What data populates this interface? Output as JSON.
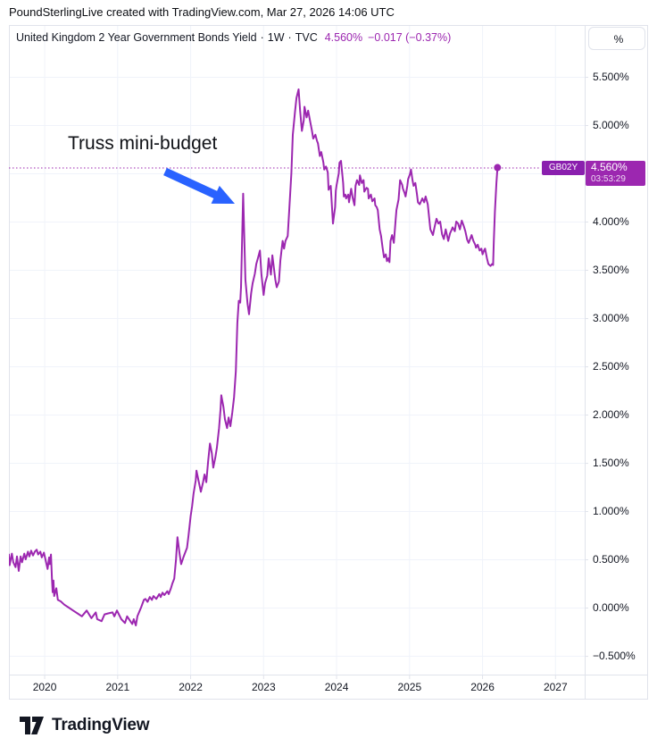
{
  "header": {
    "attribution": "PoundSterlingLive created with TradingView.com, Mar 27, 2026 14:06 UTC"
  },
  "legend": {
    "title": "United Kingdom 2 Year Government Bonds Yield",
    "separator": "·",
    "interval": "1W",
    "exchange": "TVC",
    "value": "4.560%",
    "change": "−0.017 (−0.37%)"
  },
  "annotation": {
    "label": "Truss mini-budget"
  },
  "price_scale": {
    "unit_button": "%",
    "label_symbol": "GB02Y",
    "label_value": "4.560%",
    "label_countdown": "03:53:29"
  },
  "footer": {
    "brand": "TradingView"
  },
  "colors": {
    "line": "#9c27b0",
    "badge_symbol_bg": "#8a1fae",
    "badge_value_bg": "#9c27b0",
    "arrow": "#2962ff",
    "grid": "#f0f3fa",
    "frame": "#e0e3eb",
    "text": "#131722"
  },
  "chart_data": {
    "type": "line",
    "title": "United Kingdom 2 Year Government Bonds Yield",
    "interval": "1W",
    "symbol": "GB02Y",
    "grid": true,
    "x_axis": {
      "range": [
        2019.51,
        2027.4
      ],
      "ticks": [
        2020,
        2021,
        2022,
        2023,
        2024,
        2025,
        2026,
        2027
      ],
      "tick_labels": [
        "2020",
        "2021",
        "2022",
        "2023",
        "2024",
        "2025",
        "2026",
        "2027"
      ]
    },
    "y_axis": {
      "unit": "%",
      "range": [
        -0.694,
        6.037
      ],
      "gridline_values": [
        5.5,
        5.0,
        4.5,
        4.0,
        3.5,
        3.0,
        2.5,
        2.0,
        1.5,
        1.0,
        0.5,
        0.0,
        -0.5
      ],
      "labels": [
        {
          "value": 5.5,
          "label": "5.500%"
        },
        {
          "value": 5.0,
          "label": "5.000%"
        },
        {
          "value": 4.0,
          "label": "4.000%"
        },
        {
          "value": 3.5,
          "label": "3.500%"
        },
        {
          "value": 3.0,
          "label": "3.000%"
        },
        {
          "value": 2.5,
          "label": "2.500%"
        },
        {
          "value": 2.0,
          "label": "2.000%"
        },
        {
          "value": 1.5,
          "label": "1.500%"
        },
        {
          "value": 1.0,
          "label": "1.000%"
        },
        {
          "value": 0.5,
          "label": "0.500%"
        },
        {
          "value": 0.0,
          "label": "0.000%"
        },
        {
          "value": -0.5,
          "label": "−0.500%"
        }
      ]
    },
    "last_point": {
      "x": 2026.205,
      "value": 4.56
    },
    "annotations": [
      {
        "text": "Truss mini-budget",
        "points_to_x": 2022.72,
        "points_to_value": 4.29
      }
    ],
    "series": [
      {
        "name": "GB02Y",
        "color": "#9c27b0",
        "points": [
          [
            2019.51,
            0.55
          ],
          [
            2019.52,
            0.44
          ],
          [
            2019.55,
            0.56
          ],
          [
            2019.57,
            0.47
          ],
          [
            2019.6,
            0.42
          ],
          [
            2019.62,
            0.53
          ],
          [
            2019.645,
            0.38
          ],
          [
            2019.67,
            0.53
          ],
          [
            2019.69,
            0.47
          ],
          [
            2019.72,
            0.56
          ],
          [
            2019.74,
            0.5
          ],
          [
            2019.77,
            0.58
          ],
          [
            2019.79,
            0.53
          ],
          [
            2019.815,
            0.59
          ],
          [
            2019.84,
            0.54
          ],
          [
            2019.865,
            0.58
          ],
          [
            2019.89,
            0.6
          ],
          [
            2019.91,
            0.55
          ],
          [
            2019.94,
            0.58
          ],
          [
            2019.96,
            0.52
          ],
          [
            2019.99,
            0.57
          ],
          [
            2020.01,
            0.5
          ],
          [
            2020.04,
            0.4
          ],
          [
            2020.06,
            0.52
          ],
          [
            2020.07,
            0.45
          ],
          [
            2020.086,
            0.55
          ],
          [
            2020.1,
            0.3
          ],
          [
            2020.11,
            0.16
          ],
          [
            2020.12,
            0.28
          ],
          [
            2020.13,
            0.12
          ],
          [
            2020.16,
            0.2
          ],
          [
            2020.18,
            0.08
          ],
          [
            2020.22,
            0.065
          ],
          [
            2020.27,
            0.03
          ],
          [
            2020.33,
            0.0
          ],
          [
            2020.39,
            -0.03
          ],
          [
            2020.45,
            -0.06
          ],
          [
            2020.51,
            -0.09
          ],
          [
            2020.575,
            -0.03
          ],
          [
            2020.64,
            -0.11
          ],
          [
            2020.7,
            -0.05
          ],
          [
            2020.72,
            -0.12
          ],
          [
            2020.78,
            -0.14
          ],
          [
            2020.82,
            -0.07
          ],
          [
            2020.87,
            -0.06
          ],
          [
            2020.93,
            -0.05
          ],
          [
            2020.955,
            -0.09
          ],
          [
            2020.99,
            -0.03
          ],
          [
            2021.05,
            -0.12
          ],
          [
            2021.1,
            -0.16
          ],
          [
            2021.13,
            -0.09
          ],
          [
            2021.2,
            -0.17
          ],
          [
            2021.22,
            -0.12
          ],
          [
            2021.25,
            -0.185
          ],
          [
            2021.27,
            -0.09
          ],
          [
            2021.32,
            0.0
          ],
          [
            2021.36,
            0.08
          ],
          [
            2021.38,
            0.09
          ],
          [
            2021.41,
            0.06
          ],
          [
            2021.44,
            0.11
          ],
          [
            2021.47,
            0.08
          ],
          [
            2021.49,
            0.12
          ],
          [
            2021.53,
            0.09
          ],
          [
            2021.57,
            0.14
          ],
          [
            2021.59,
            0.11
          ],
          [
            2021.615,
            0.155
          ],
          [
            2021.64,
            0.13
          ],
          [
            2021.68,
            0.17
          ],
          [
            2021.7,
            0.14
          ],
          [
            2021.73,
            0.2
          ],
          [
            2021.75,
            0.25
          ],
          [
            2021.775,
            0.3
          ],
          [
            2021.8,
            0.5
          ],
          [
            2021.82,
            0.73
          ],
          [
            2021.85,
            0.55
          ],
          [
            2021.87,
            0.45
          ],
          [
            2021.9,
            0.52
          ],
          [
            2021.92,
            0.56
          ],
          [
            2021.95,
            0.62
          ],
          [
            2021.97,
            0.74
          ],
          [
            2022.0,
            0.95
          ],
          [
            2022.02,
            1.05
          ],
          [
            2022.04,
            1.18
          ],
          [
            2022.07,
            1.32
          ],
          [
            2022.08,
            1.42
          ],
          [
            2022.105,
            1.33
          ],
          [
            2022.14,
            1.2
          ],
          [
            2022.17,
            1.3
          ],
          [
            2022.19,
            1.38
          ],
          [
            2022.215,
            1.3
          ],
          [
            2022.24,
            1.52
          ],
          [
            2022.265,
            1.7
          ],
          [
            2022.29,
            1.6
          ],
          [
            2022.31,
            1.45
          ],
          [
            2022.34,
            1.56
          ],
          [
            2022.36,
            1.66
          ],
          [
            2022.39,
            1.86
          ],
          [
            2022.41,
            2.06
          ],
          [
            2022.42,
            2.2
          ],
          [
            2022.45,
            2.08
          ],
          [
            2022.47,
            1.95
          ],
          [
            2022.5,
            1.86
          ],
          [
            2022.52,
            1.97
          ],
          [
            2022.545,
            1.88
          ],
          [
            2022.57,
            2.02
          ],
          [
            2022.595,
            2.18
          ],
          [
            2022.62,
            2.45
          ],
          [
            2022.64,
            2.95
          ],
          [
            2022.66,
            3.18
          ],
          [
            2022.68,
            3.16
          ],
          [
            2022.69,
            3.32
          ],
          [
            2022.72,
            4.29
          ],
          [
            2022.73,
            4.0
          ],
          [
            2022.75,
            3.4
          ],
          [
            2022.78,
            3.15
          ],
          [
            2022.8,
            3.04
          ],
          [
            2022.83,
            3.26
          ],
          [
            2022.85,
            3.36
          ],
          [
            2022.88,
            3.46
          ],
          [
            2022.9,
            3.56
          ],
          [
            2022.925,
            3.63
          ],
          [
            2022.95,
            3.7
          ],
          [
            2022.97,
            3.45
          ],
          [
            2023.0,
            3.24
          ],
          [
            2023.02,
            3.36
          ],
          [
            2023.05,
            3.44
          ],
          [
            2023.07,
            3.62
          ],
          [
            2023.1,
            3.45
          ],
          [
            2023.12,
            3.65
          ],
          [
            2023.16,
            3.4
          ],
          [
            2023.18,
            3.32
          ],
          [
            2023.21,
            3.38
          ],
          [
            2023.23,
            3.6
          ],
          [
            2023.26,
            3.8
          ],
          [
            2023.28,
            3.72
          ],
          [
            2023.3,
            3.8
          ],
          [
            2023.33,
            3.85
          ],
          [
            2023.35,
            4.1
          ],
          [
            2023.38,
            4.5
          ],
          [
            2023.4,
            4.9
          ],
          [
            2023.43,
            5.14
          ],
          [
            2023.45,
            5.28
          ],
          [
            2023.48,
            5.37
          ],
          [
            2023.5,
            5.15
          ],
          [
            2023.525,
            4.94
          ],
          [
            2023.55,
            5.05
          ],
          [
            2023.56,
            5.19
          ],
          [
            2023.59,
            5.08
          ],
          [
            2023.61,
            5.15
          ],
          [
            2023.635,
            5.05
          ],
          [
            2023.66,
            4.95
          ],
          [
            2023.68,
            4.86
          ],
          [
            2023.71,
            4.9
          ],
          [
            2023.73,
            4.84
          ],
          [
            2023.745,
            4.81
          ],
          [
            2023.77,
            4.68
          ],
          [
            2023.79,
            4.72
          ],
          [
            2023.82,
            4.61
          ],
          [
            2023.83,
            4.54
          ],
          [
            2023.855,
            4.57
          ],
          [
            2023.88,
            4.51
          ],
          [
            2023.89,
            4.33
          ],
          [
            2023.92,
            4.37
          ],
          [
            2023.94,
            4.12
          ],
          [
            2023.95,
            3.98
          ],
          [
            2023.98,
            4.15
          ],
          [
            2023.99,
            4.32
          ],
          [
            2024.0,
            4.38
          ],
          [
            2024.03,
            4.5
          ],
          [
            2024.04,
            4.61
          ],
          [
            2024.06,
            4.63
          ],
          [
            2024.09,
            4.4
          ],
          [
            2024.1,
            4.26
          ],
          [
            2024.12,
            4.28
          ],
          [
            2024.13,
            4.24
          ],
          [
            2024.16,
            4.28
          ],
          [
            2024.17,
            4.2
          ],
          [
            2024.2,
            4.34
          ],
          [
            2024.22,
            4.25
          ],
          [
            2024.245,
            4.17
          ],
          [
            2024.26,
            4.37
          ],
          [
            2024.28,
            4.43
          ],
          [
            2024.31,
            4.38
          ],
          [
            2024.32,
            4.48
          ],
          [
            2024.345,
            4.4
          ],
          [
            2024.37,
            4.43
          ],
          [
            2024.38,
            4.31
          ],
          [
            2024.41,
            4.35
          ],
          [
            2024.43,
            4.34
          ],
          [
            2024.44,
            4.24
          ],
          [
            2024.47,
            4.28
          ],
          [
            2024.49,
            4.21
          ],
          [
            2024.52,
            4.24
          ],
          [
            2024.53,
            4.17
          ],
          [
            2024.55,
            4.15
          ],
          [
            2024.565,
            4.12
          ],
          [
            2024.59,
            3.92
          ],
          [
            2024.61,
            3.85
          ],
          [
            2024.63,
            3.73
          ],
          [
            2024.65,
            3.63
          ],
          [
            2024.675,
            3.66
          ],
          [
            2024.69,
            3.59
          ],
          [
            2024.71,
            3.62
          ],
          [
            2024.725,
            3.58
          ],
          [
            2024.74,
            3.8
          ],
          [
            2024.76,
            3.86
          ],
          [
            2024.785,
            3.78
          ],
          [
            2024.81,
            4.03
          ],
          [
            2024.82,
            4.12
          ],
          [
            2024.85,
            4.23
          ],
          [
            2024.87,
            4.43
          ],
          [
            2024.9,
            4.38
          ],
          [
            2024.91,
            4.34
          ],
          [
            2024.93,
            4.3
          ],
          [
            2024.945,
            4.26
          ],
          [
            2024.97,
            4.37
          ],
          [
            2024.98,
            4.44
          ],
          [
            2025.005,
            4.49
          ],
          [
            2025.02,
            4.54
          ],
          [
            2025.04,
            4.43
          ],
          [
            2025.055,
            4.37
          ],
          [
            2025.08,
            4.4
          ],
          [
            2025.1,
            4.29
          ],
          [
            2025.115,
            4.2
          ],
          [
            2025.14,
            4.18
          ],
          [
            2025.175,
            4.24
          ],
          [
            2025.2,
            4.2
          ],
          [
            2025.22,
            4.26
          ],
          [
            2025.25,
            4.18
          ],
          [
            2025.285,
            3.92
          ],
          [
            2025.32,
            3.86
          ],
          [
            2025.345,
            3.95
          ],
          [
            2025.37,
            4.03
          ],
          [
            2025.395,
            3.98
          ],
          [
            2025.42,
            4.0
          ],
          [
            2025.445,
            3.87
          ],
          [
            2025.47,
            3.82
          ],
          [
            2025.495,
            3.92
          ],
          [
            2025.53,
            3.8
          ],
          [
            2025.555,
            3.88
          ],
          [
            2025.58,
            3.92
          ],
          [
            2025.59,
            3.94
          ],
          [
            2025.62,
            3.9
          ],
          [
            2025.64,
            4.0
          ],
          [
            2025.665,
            3.98
          ],
          [
            2025.69,
            3.92
          ],
          [
            2025.715,
            4.01
          ],
          [
            2025.74,
            3.96
          ],
          [
            2025.765,
            3.9
          ],
          [
            2025.79,
            3.81
          ],
          [
            2025.81,
            3.78
          ],
          [
            2025.835,
            3.83
          ],
          [
            2025.85,
            3.86
          ],
          [
            2025.875,
            3.8
          ],
          [
            2025.9,
            3.76
          ],
          [
            2025.91,
            3.73
          ],
          [
            2025.935,
            3.76
          ],
          [
            2025.96,
            3.7
          ],
          [
            2025.985,
            3.72
          ],
          [
            2026.0,
            3.66
          ],
          [
            2026.02,
            3.7
          ],
          [
            2026.035,
            3.72
          ],
          [
            2026.06,
            3.62
          ],
          [
            2026.08,
            3.56
          ],
          [
            2026.11,
            3.54
          ],
          [
            2026.13,
            3.56
          ],
          [
            2026.145,
            3.55
          ],
          [
            2026.155,
            3.8
          ],
          [
            2026.17,
            4.1
          ],
          [
            2026.19,
            4.4
          ],
          [
            2026.205,
            4.56
          ]
        ]
      }
    ]
  }
}
